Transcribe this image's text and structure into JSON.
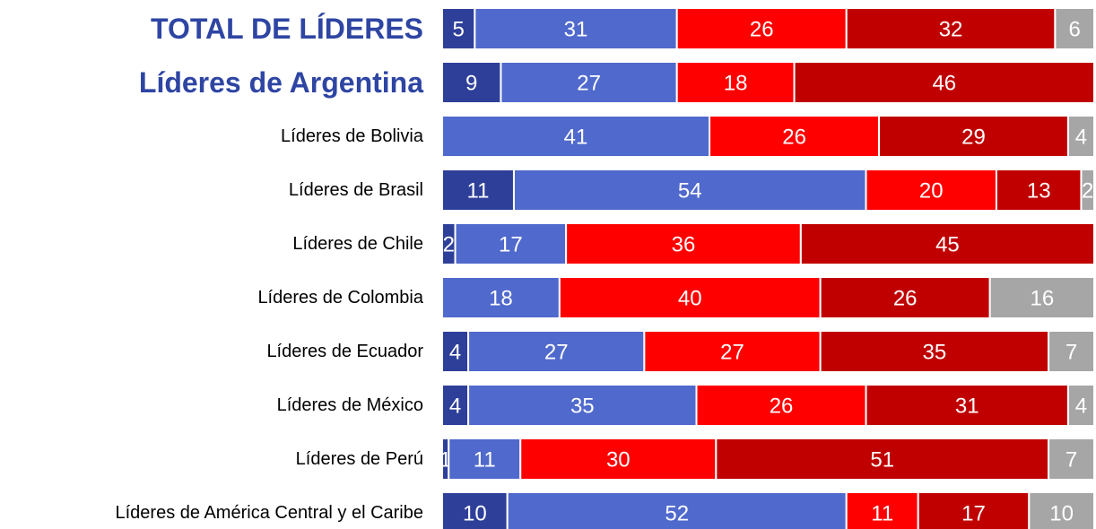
{
  "chart_data": {
    "type": "stacked-bar-horizontal",
    "categories": [
      "TOTAL DE LÍDERES",
      "Líderes de Argentina",
      "Líderes de Bolivia",
      "Líderes de Brasil",
      "Líderes de Chile",
      "Líderes de Colombia",
      "Líderes de Ecuador",
      "Líderes de México",
      "Líderes de Perú",
      "Líderes de América Central y el Caribe"
    ],
    "series": [
      {
        "color": "#2e3f9a",
        "values": [
          5,
          9,
          null,
          11,
          2,
          null,
          4,
          4,
          1,
          10
        ]
      },
      {
        "color": "#5069cc",
        "values": [
          31,
          27,
          41,
          54,
          17,
          18,
          27,
          35,
          11,
          52
        ]
      },
      {
        "color": "#ff0000",
        "values": [
          26,
          18,
          26,
          20,
          36,
          40,
          27,
          26,
          30,
          11
        ]
      },
      {
        "color": "#c00000",
        "values": [
          32,
          46,
          29,
          13,
          45,
          26,
          35,
          31,
          51,
          17
        ]
      },
      {
        "color": "#a6a6a6",
        "values": [
          6,
          null,
          4,
          2,
          null,
          16,
          7,
          4,
          7,
          10
        ]
      }
    ]
  }
}
